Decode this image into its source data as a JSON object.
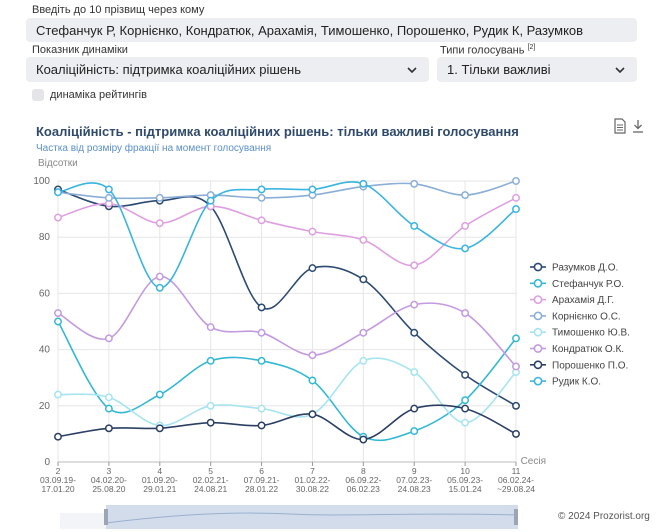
{
  "search": {
    "label": "Введіть до 10 прізвищ через кому",
    "value": "Стефанчук Р, Корнієнко, Кондратюк, Арахамія, Тимошенко, Порошенко, Рудик К, Разумков"
  },
  "indicator": {
    "label": "Показник динаміки",
    "value": "Коаліційність: підтримка коаліційних рішень"
  },
  "vote_type": {
    "label": "Типи голосувань",
    "label_sup": "[2]",
    "value": "1. Тільки важливі"
  },
  "ratings_checkbox": {
    "label": "динаміка рейтингів",
    "checked": false
  },
  "toolbar": {
    "doc_icon": "document-icon",
    "download_icon": "download-icon"
  },
  "footer": {
    "copyright": "© 2024 Prozorist.org"
  },
  "chart_data": {
    "type": "line",
    "title": "Коаліційність - підтримка коаліційних рішень: тільки важливі голосування",
    "subtitle": "Частка від розміру фракції на момент голосування",
    "ylabel": "Відсотки",
    "xlabel": "Сесія",
    "ylim": [
      0,
      100
    ],
    "yticks": [
      0,
      20,
      40,
      60,
      80,
      100
    ],
    "grid": true,
    "legend_position": "right",
    "x": [
      2,
      3,
      4,
      5,
      6,
      7,
      8,
      9,
      10,
      11
    ],
    "categories": [
      [
        "2",
        "03.09.19-",
        "17.01.20"
      ],
      [
        "3",
        "04.02.20-",
        "25.08.20"
      ],
      [
        "4",
        "01.09.20-",
        "29.01.21"
      ],
      [
        "5",
        "02.02.21-",
        "24.08.21"
      ],
      [
        "6",
        "07.09.21-",
        "28.01.22"
      ],
      [
        "7",
        "01.02.22-",
        "30.08.22"
      ],
      [
        "8",
        "06.09.22-",
        "06.02.23"
      ],
      [
        "9",
        "07.02.23-",
        "24.08.23"
      ],
      [
        "10",
        "05.09.23-",
        "15.01.24"
      ],
      [
        "11",
        "06.02.24-",
        "~29.08.24"
      ]
    ],
    "series": [
      {
        "name": "Разумков Д.О.",
        "color": "#2c4a72",
        "values": [
          97,
          91,
          93,
          91,
          55,
          69,
          65,
          46,
          31,
          20
        ]
      },
      {
        "name": "Стефанчук Р.О.",
        "color": "#33b8d4",
        "values": [
          50,
          19,
          24,
          36,
          36,
          29,
          9,
          11,
          22,
          44
        ]
      },
      {
        "name": "Арахамія Д.Г.",
        "color": "#de9fe0",
        "values": [
          87,
          92,
          85,
          91,
          86,
          82,
          79,
          70,
          84,
          94
        ]
      },
      {
        "name": "Корнієнко О.С.",
        "color": "#8aaed6",
        "values": [
          96,
          94,
          94,
          95,
          94,
          95,
          98,
          99,
          95,
          100
        ]
      },
      {
        "name": "Тимошенко Ю.В.",
        "color": "#a6e4f0",
        "values": [
          24,
          23,
          13,
          20,
          19,
          17,
          36,
          32,
          14,
          32
        ]
      },
      {
        "name": "Кондратюк О.К.",
        "color": "#c39ae0",
        "values": [
          53,
          44,
          66,
          48,
          46,
          38,
          46,
          56,
          53,
          34
        ]
      },
      {
        "name": "Порошенко П.О.",
        "color": "#2b3f63",
        "values": [
          9,
          12,
          12,
          14,
          13,
          17,
          8,
          19,
          19,
          10
        ]
      },
      {
        "name": "Рудик К.О.",
        "color": "#3ab4e0",
        "values": [
          96,
          97,
          62,
          93,
          97,
          97,
          99,
          84,
          76,
          90
        ]
      }
    ]
  }
}
